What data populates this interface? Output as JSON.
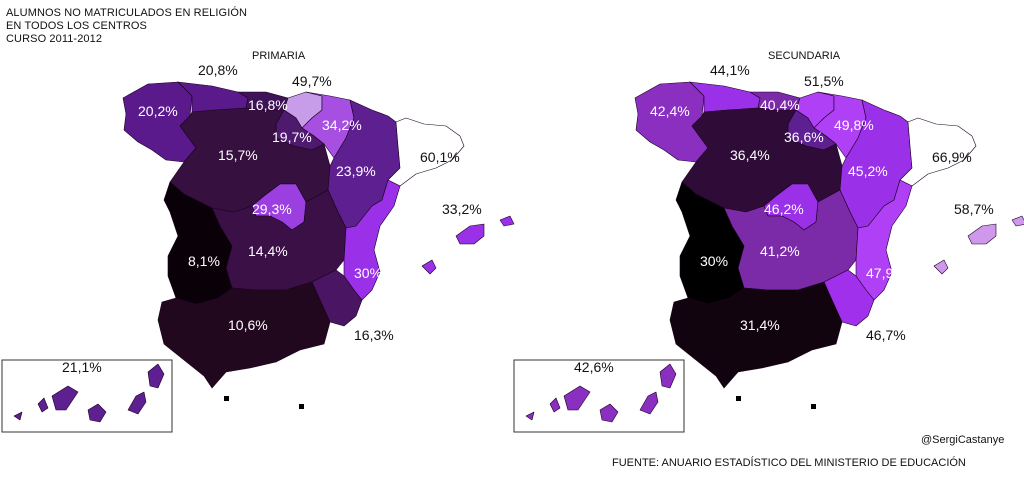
{
  "header": {
    "line1": "ALUMNOS NO MATRICULADOS EN RELIGIÓN",
    "line2": "EN TODOS LOS CENTROS",
    "line3": "CURSO 2011-2012"
  },
  "maps": [
    {
      "title": "PRIMARIA",
      "regions": [
        {
          "name": "galicia",
          "value": "20,2%",
          "level": 0.2,
          "color": "#5a1a8c"
        },
        {
          "name": "asturias",
          "value": "20,8%",
          "level": 0.21,
          "color": "#5a1a8c"
        },
        {
          "name": "cantabria",
          "value": "16,8%",
          "level": 0.17,
          "color": "#3f1357"
        },
        {
          "name": "pais-vasco",
          "value": "49,7%",
          "level": 0.5,
          "color": "#c79ce8"
        },
        {
          "name": "navarra",
          "value": "34,2%",
          "level": 0.34,
          "color": "#a64fe0"
        },
        {
          "name": "la-rioja",
          "value": "19,7%",
          "level": 0.2,
          "color": "#4e1a6e"
        },
        {
          "name": "castilla-leon",
          "value": "15,7%",
          "level": 0.16,
          "color": "#36103f"
        },
        {
          "name": "aragon",
          "value": "23,9%",
          "level": 0.24,
          "color": "#5e1f90"
        },
        {
          "name": "cataluna",
          "value": "60,1%",
          "level": 0.6,
          "color": "#ffffff"
        },
        {
          "name": "madrid",
          "value": "29,3%",
          "level": 0.29,
          "color": "#9b3fe0"
        },
        {
          "name": "castilla-la-mancha",
          "value": "14,4%",
          "level": 0.14,
          "color": "#3a1046"
        },
        {
          "name": "extremadura",
          "value": "8,1%",
          "level": 0.08,
          "color": "#0a0008"
        },
        {
          "name": "valencia",
          "value": "30%",
          "level": 0.3,
          "color": "#9a30e8"
        },
        {
          "name": "murcia",
          "value": "16,3%",
          "level": 0.16,
          "color": "#4a1664"
        },
        {
          "name": "andalucia",
          "value": "10,6%",
          "level": 0.11,
          "color": "#22081e"
        },
        {
          "name": "baleares",
          "value": "33,2%",
          "level": 0.33,
          "color": "#9a30e8"
        },
        {
          "name": "canarias",
          "value": "21,1%",
          "level": 0.21,
          "color": "#5e1f90"
        }
      ]
    },
    {
      "title": "SECUNDARIA",
      "regions": [
        {
          "name": "galicia",
          "value": "42,4%",
          "level": 0.42,
          "color": "#8a2fc0"
        },
        {
          "name": "asturias",
          "value": "44,1%",
          "level": 0.44,
          "color": "#9a30e8"
        },
        {
          "name": "cantabria",
          "value": "40,4%",
          "level": 0.4,
          "color": "#7b2aa8"
        },
        {
          "name": "pais-vasco",
          "value": "51,5%",
          "level": 0.52,
          "color": "#b040f5"
        },
        {
          "name": "navarra",
          "value": "49,8%",
          "level": 0.5,
          "color": "#b040f5"
        },
        {
          "name": "la-rioja",
          "value": "36,6%",
          "level": 0.37,
          "color": "#5e1f90"
        },
        {
          "name": "castilla-leon",
          "value": "36,4%",
          "level": 0.36,
          "color": "#2f0c38"
        },
        {
          "name": "aragon",
          "value": "45,2%",
          "level": 0.45,
          "color": "#9a30e8"
        },
        {
          "name": "cataluna",
          "value": "66,9%",
          "level": 0.67,
          "color": "#ffffff"
        },
        {
          "name": "madrid",
          "value": "46,2%",
          "level": 0.46,
          "color": "#9a30e8"
        },
        {
          "name": "castilla-la-mancha",
          "value": "41,2%",
          "level": 0.41,
          "color": "#7b2aa8"
        },
        {
          "name": "extremadura",
          "value": "30%",
          "level": 0.3,
          "color": "#000000"
        },
        {
          "name": "valencia",
          "value": "47,9%",
          "level": 0.48,
          "color": "#b040f5"
        },
        {
          "name": "murcia",
          "value": "46,7%",
          "level": 0.47,
          "color": "#a030ec"
        },
        {
          "name": "andalucia",
          "value": "31,4%",
          "level": 0.31,
          "color": "#12040e"
        },
        {
          "name": "baleares",
          "value": "58,7%",
          "level": 0.59,
          "color": "#d098ec"
        },
        {
          "name": "canarias",
          "value": "42,6%",
          "level": 0.43,
          "color": "#8a2fc0"
        }
      ]
    }
  ],
  "credit": "@SergiCastanye",
  "source": "FUENTE: ANUARIO ESTADÍSTICO DEL MINISTERIO DE EDUCACIÓN"
}
